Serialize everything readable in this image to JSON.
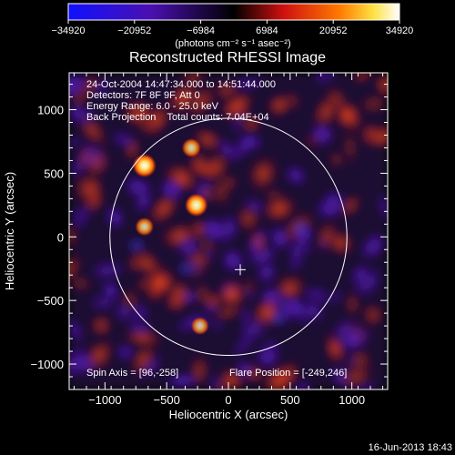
{
  "chart_data": {
    "type": "heatmap",
    "title": "Reconstructed RHESSI Image",
    "xlabel": "Heliocentric X (arcsec)",
    "ylabel": "Heliocentric Y (arcsec)",
    "xlim": [
      -1290,
      1290
    ],
    "ylim": [
      -1200,
      1290
    ],
    "x_ticks": [
      -1000,
      -500,
      0,
      500,
      1000
    ],
    "y_ticks": [
      -1000,
      -500,
      0,
      500,
      1000
    ],
    "x_tick_labels": [
      "−1000",
      "−500",
      "0",
      "500",
      "1000"
    ],
    "y_tick_labels": [
      "−1000",
      "−500",
      "0",
      "500",
      "1000"
    ],
    "colorbar": {
      "min": -34920,
      "max": 34920,
      "ticks": [
        -34920,
        -20952,
        -6984,
        6984,
        20952,
        34920
      ],
      "tick_labels": [
        "−34920",
        "−20952",
        "−6984",
        "6984",
        "20952",
        "34920"
      ],
      "units": "(photons cm⁻² s⁻¹ asec⁻²)"
    },
    "annotations": {
      "time_range": "24-Oct-2004 14:47:34.000 to 14:51:44.000",
      "detectors": "Detectors: 7F 8F 9F, Att 0",
      "energy_range": "Energy Range: 6.0 - 25.0 keV",
      "method_and_counts": "Back Projection    Total counts: 7.04E+04",
      "spin_axis": "Spin Axis = [96,-258]",
      "flare_position": "Flare Position = [-249,246]"
    },
    "solar_limb": {
      "center": [
        0,
        0
      ],
      "radius_arcsec": 960
    },
    "spin_axis_marker": [
      96,
      -258
    ],
    "bright_sources": [
      {
        "x": -680,
        "y": 560,
        "rel_intensity": 1.0
      },
      {
        "x": -260,
        "y": 250,
        "rel_intensity": 0.95
      },
      {
        "x": -300,
        "y": 700,
        "rel_intensity": 0.6
      },
      {
        "x": -680,
        "y": 80,
        "rel_intensity": 0.55
      },
      {
        "x": -230,
        "y": -700,
        "rel_intensity": 0.5
      }
    ],
    "grid": false,
    "colormap": "blue-black-red-yellow-white"
  },
  "footer": {
    "timestamp": "16-Jun-2013 18:43"
  }
}
